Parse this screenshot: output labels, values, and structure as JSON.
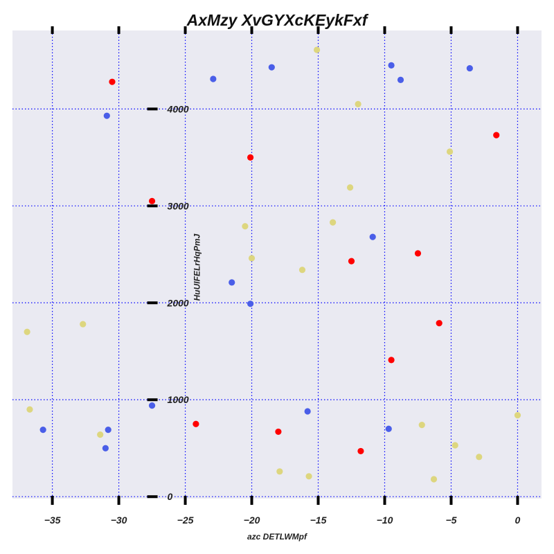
{
  "chart_data": {
    "type": "scatter",
    "title": "AxMzy XvGYXcKEykFxf",
    "xlabel": "azc DETLWMpf",
    "ylabel": "HuUIFELrHqPmJ",
    "xlim": [
      -38.0,
      1.8
    ],
    "ylim": [
      -20,
      4810
    ],
    "x_ticks": [
      -35,
      -30,
      -25,
      -20,
      -15,
      -10,
      -5,
      0
    ],
    "x_tick_labels": [
      "−35",
      "−30",
      "−25",
      "−20",
      "−15",
      "−10",
      "−5",
      "0"
    ],
    "y_ticks": [
      0,
      1000,
      2000,
      3000,
      4000
    ],
    "y_tick_labels": [
      "0",
      "1000",
      "2000",
      "3000",
      "4000"
    ],
    "y_axis_at_x": -27.5,
    "grid": true,
    "background": "#eaeaf2",
    "grid_color": "#0000ff",
    "series": [
      {
        "color": "#ff0000",
        "points": [
          [
            -30.5,
            4280
          ],
          [
            -20.1,
            3500
          ],
          [
            -27.5,
            3050
          ],
          [
            -12.5,
            2430
          ],
          [
            -7.5,
            2510
          ],
          [
            -5.9,
            1790
          ],
          [
            -9.5,
            1410
          ],
          [
            -24.2,
            750
          ],
          [
            -18.0,
            670
          ],
          [
            -11.8,
            470
          ],
          [
            -1.6,
            3730
          ]
        ]
      },
      {
        "color": "#4a5ee8",
        "points": [
          [
            -22.9,
            4310
          ],
          [
            -18.5,
            4430
          ],
          [
            -9.5,
            4450
          ],
          [
            -8.8,
            4300
          ],
          [
            -3.6,
            4420
          ],
          [
            -30.9,
            3930
          ],
          [
            -10.9,
            2680
          ],
          [
            -21.5,
            2210
          ],
          [
            -20.1,
            1990
          ],
          [
            -27.5,
            940
          ],
          [
            -15.8,
            880
          ],
          [
            -35.7,
            690
          ],
          [
            -30.8,
            690
          ],
          [
            -31.0,
            500
          ],
          [
            -9.7,
            700
          ]
        ]
      },
      {
        "color": "#ddd67f",
        "points": [
          [
            -15.1,
            4610
          ],
          [
            -12.0,
            4050
          ],
          [
            -5.1,
            3560
          ],
          [
            -12.6,
            3190
          ],
          [
            -13.9,
            2830
          ],
          [
            -20.5,
            2790
          ],
          [
            -20.0,
            2460
          ],
          [
            -16.2,
            2340
          ],
          [
            -36.9,
            1700
          ],
          [
            -32.7,
            1780
          ],
          [
            -36.7,
            900
          ],
          [
            -31.4,
            640
          ],
          [
            -17.9,
            260
          ],
          [
            -15.7,
            210
          ],
          [
            -7.2,
            740
          ],
          [
            -4.7,
            530
          ],
          [
            -2.9,
            410
          ],
          [
            -6.3,
            180
          ],
          [
            0.0,
            840
          ]
        ]
      }
    ]
  }
}
